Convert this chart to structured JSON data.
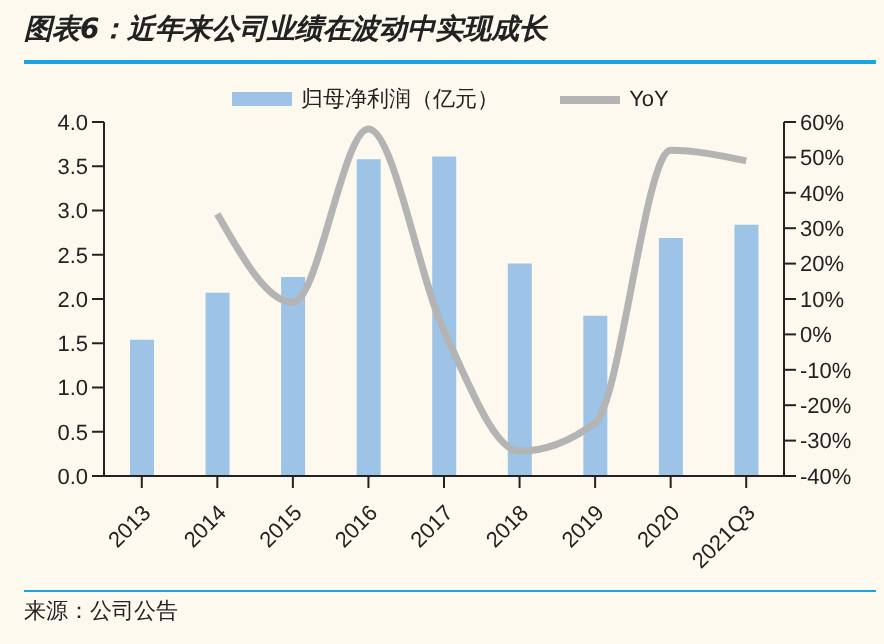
{
  "chart_data": {
    "type": "bar",
    "title": "图表6：近年来公司业绩在波动中实现成长",
    "categories": [
      "2013",
      "2014",
      "2015",
      "2016",
      "2017",
      "2018",
      "2019",
      "2020",
      "2021Q3"
    ],
    "series": [
      {
        "name": "归母净利润（亿元）",
        "color": "#9dc3e6",
        "values": [
          1.54,
          2.07,
          2.25,
          3.58,
          3.61,
          2.4,
          1.81,
          2.69,
          2.84
        ]
      },
      {
        "name": "YoY",
        "type": "line",
        "axis": "y2",
        "color": "#b4b4b4",
        "values": [
          null,
          34,
          9,
          58,
          1,
          -33,
          -25,
          52,
          49
        ]
      }
    ],
    "ylim": [
      0,
      4
    ],
    "yticks": [
      {
        "value": 0,
        "label": "0.0"
      },
      0.5,
      {
        "value": 1,
        "label": "1.0"
      },
      1.5,
      {
        "value": 2,
        "label": "2.0"
      },
      2.5,
      {
        "value": 3,
        "label": "3.0"
      },
      3.5,
      {
        "value": 4,
        "label": "4.0"
      }
    ],
    "y2lim": [
      -40,
      60
    ],
    "y2ticks": [
      {
        "value": -40,
        "label": "-40%"
      },
      {
        "value": -30,
        "label": "-30%"
      },
      {
        "value": -20,
        "label": "-20%"
      },
      {
        "value": -10,
        "label": "-10%"
      },
      {
        "value": 0,
        "label": "0%"
      },
      {
        "value": 10,
        "label": "10%"
      },
      {
        "value": 20,
        "label": "20%"
      },
      {
        "value": 30,
        "label": "30%"
      },
      {
        "value": 40,
        "label": "40%"
      },
      {
        "value": 50,
        "label": "50%"
      },
      {
        "value": 60,
        "label": "60%"
      }
    ],
    "legend": "top",
    "marker": "none",
    "grid": false,
    "annotations": [
      "来源：公司公告"
    ]
  }
}
